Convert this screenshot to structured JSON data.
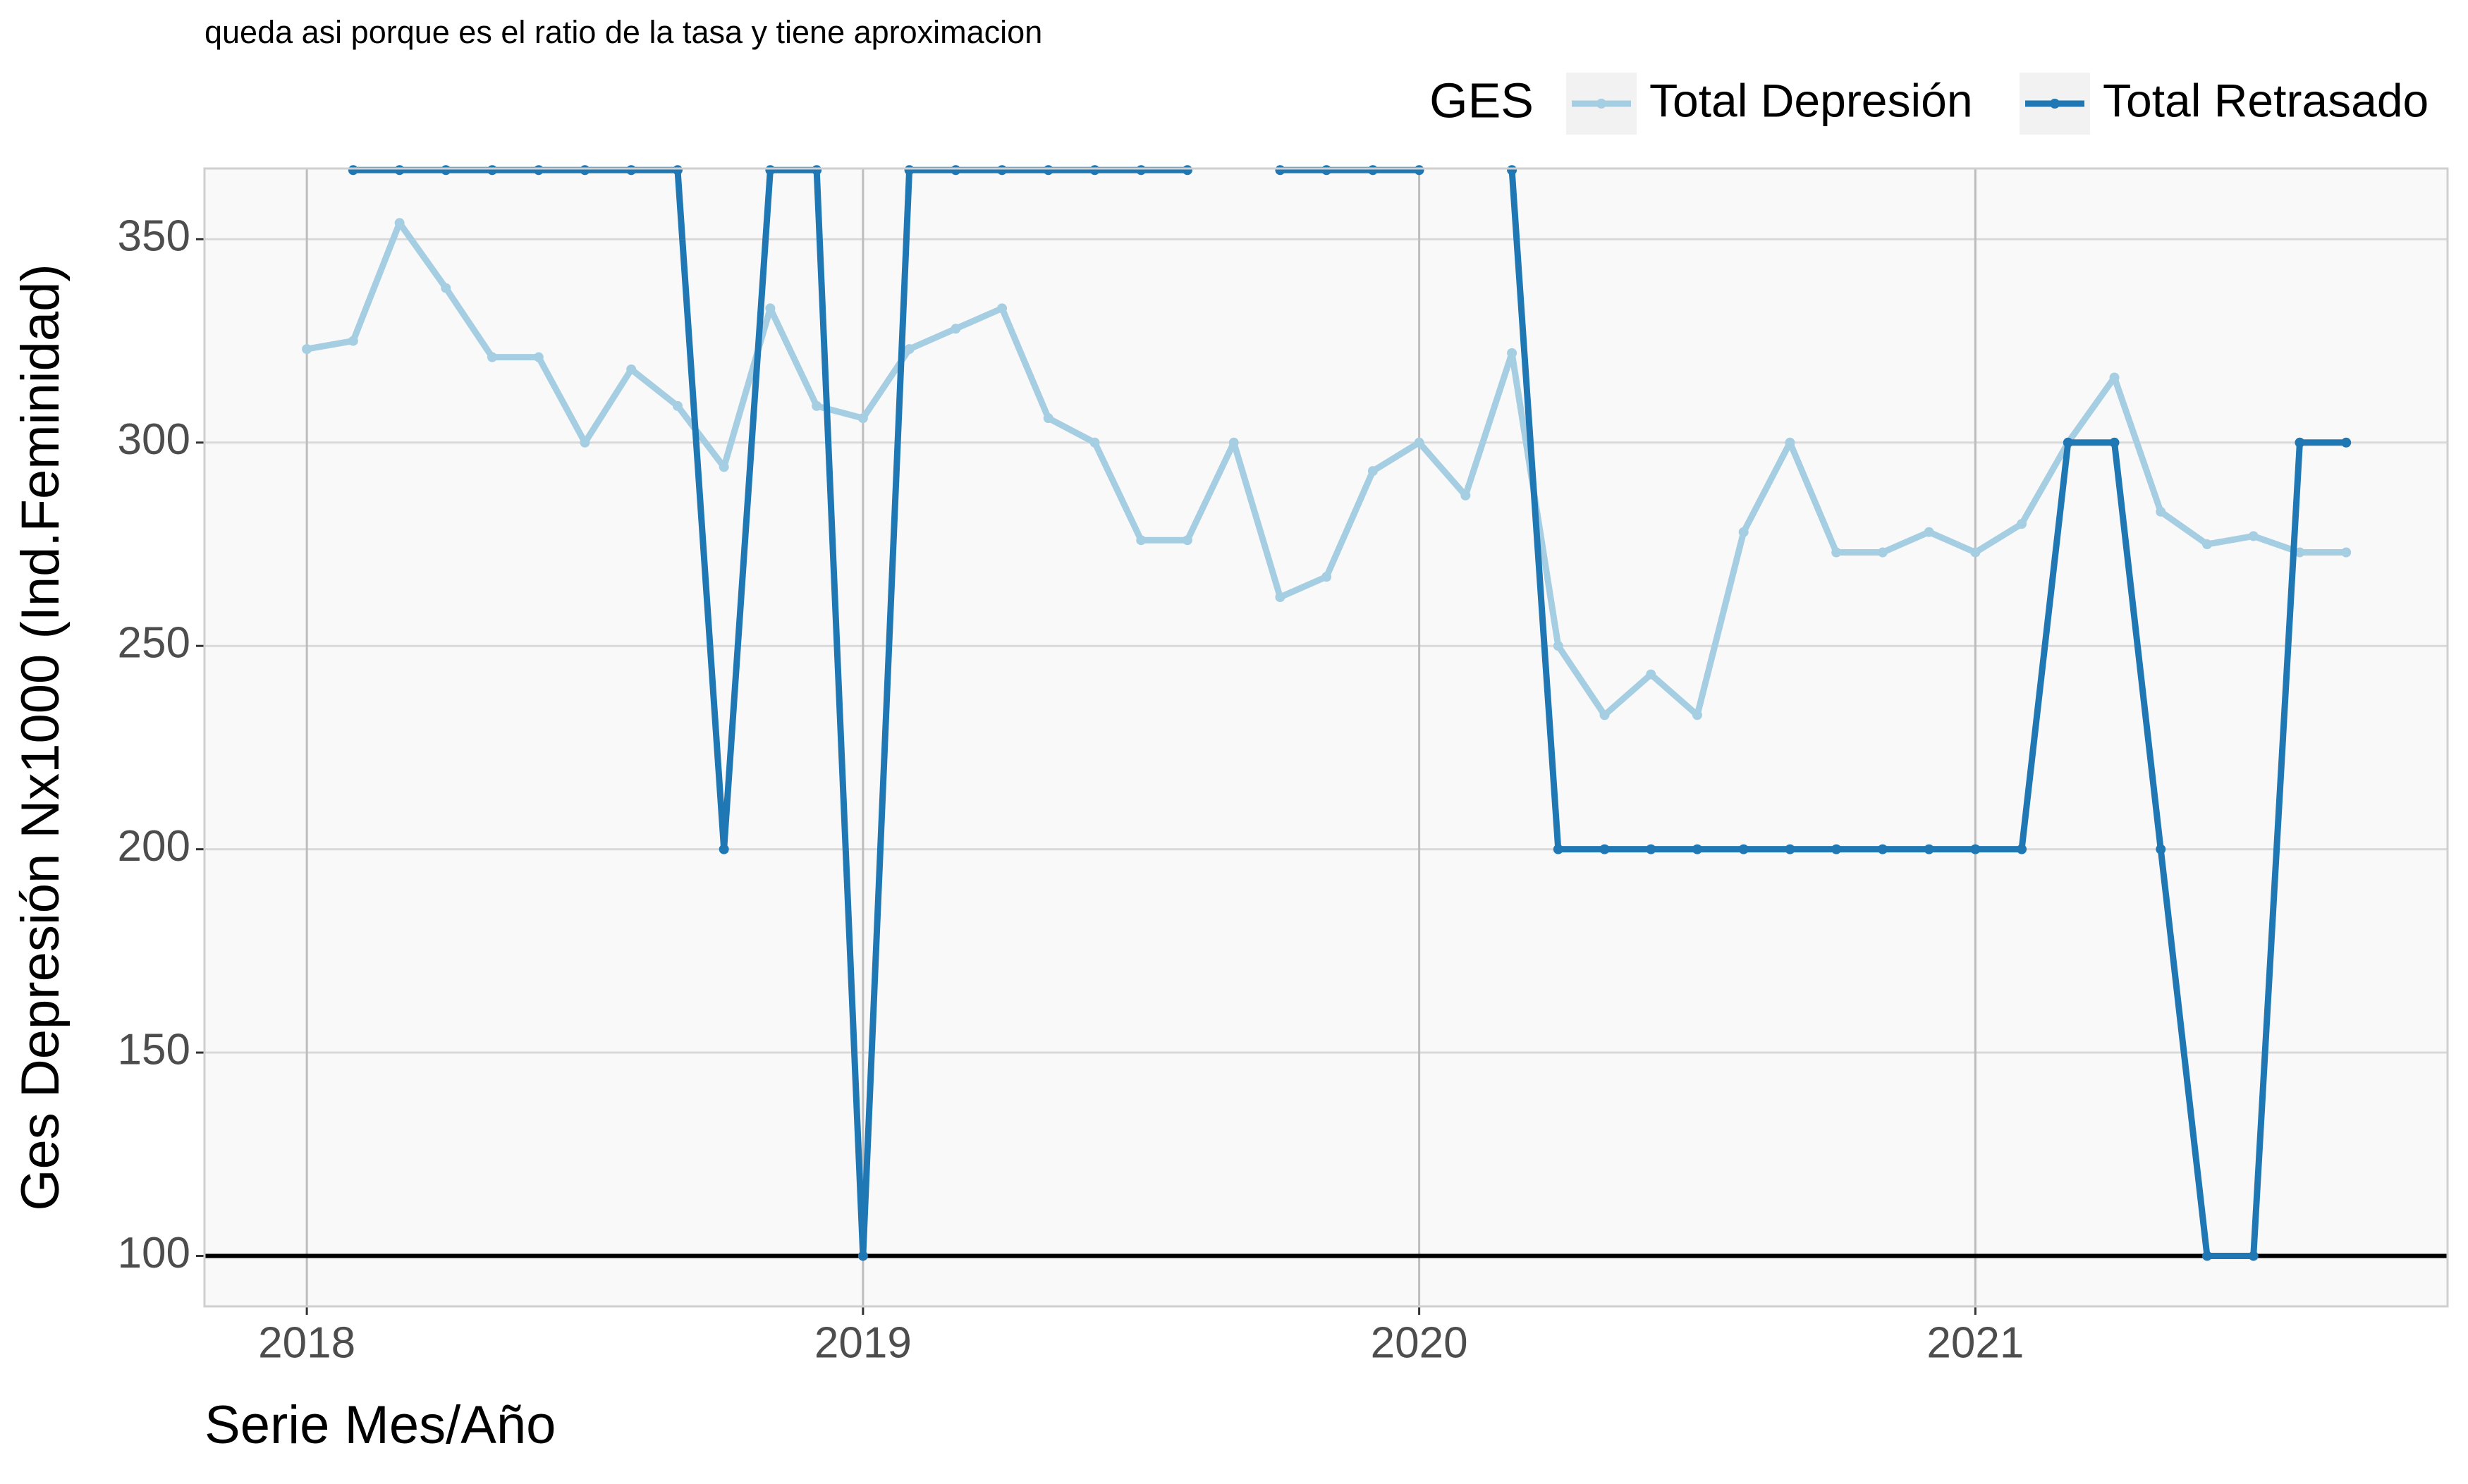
{
  "chart_data": {
    "type": "line",
    "subtitle": "queda asi porque es el ratio de la tasa y tiene aproximacion",
    "x_label": "Serie Mes/Año",
    "y_label": "Ges Depresión Nx1000 (Ind.Feminidad)",
    "legend_title": "GES",
    "legend_position": "top-right",
    "grid": true,
    "hline": 100,
    "x": [
      2018,
      2018.0833,
      2018.1667,
      2018.25,
      2018.3333,
      2018.4167,
      2018.5,
      2018.5833,
      2018.6667,
      2018.75,
      2018.8333,
      2018.9167,
      2019,
      2019.0833,
      2019.1667,
      2019.25,
      2019.3333,
      2019.4167,
      2019.5,
      2019.5833,
      2019.6667,
      2019.75,
      2019.8333,
      2019.9167,
      2020,
      2020.0833,
      2020.1667,
      2020.25,
      2020.3333,
      2020.4167,
      2020.5,
      2020.5833,
      2020.6667,
      2020.75,
      2020.8333,
      2020.9167,
      2021,
      2021.0833,
      2021.1667,
      2021.25,
      2021.3333,
      2021.4167,
      2021.5,
      2021.5833,
      2021.6667
    ],
    "series": [
      {
        "name": "Total Depresión",
        "color": "#a6cee3",
        "values": [
          323,
          325,
          354,
          338,
          321,
          321,
          300,
          318,
          309,
          294,
          333,
          309,
          306,
          323,
          328,
          333,
          306,
          300,
          276,
          276,
          300,
          262,
          267,
          293,
          300,
          287,
          322,
          250,
          233,
          243,
          233,
          278,
          300,
          273,
          273,
          278,
          273,
          280,
          300,
          316,
          283,
          275,
          277,
          273,
          273
        ]
      },
      {
        "name": "Total Retrasado",
        "color": "#1f78b4",
        "values": [
          null,
          367,
          367,
          367,
          367,
          367,
          367,
          367,
          367,
          200,
          367,
          367,
          100,
          367,
          367,
          367,
          367,
          367,
          367,
          367,
          null,
          367,
          367,
          367,
          367,
          null,
          367,
          200,
          200,
          200,
          200,
          200,
          200,
          200,
          200,
          200,
          200,
          200,
          300,
          300,
          200,
          100,
          100,
          300,
          300
        ]
      }
    ],
    "xlim": [
      2017.816,
      2021.849
    ],
    "xticks": [
      2018,
      2019,
      2020,
      2021
    ],
    "ylim": [
      87.6,
      367.4
    ],
    "yticks": [
      100,
      150,
      200,
      250,
      300,
      350
    ]
  }
}
